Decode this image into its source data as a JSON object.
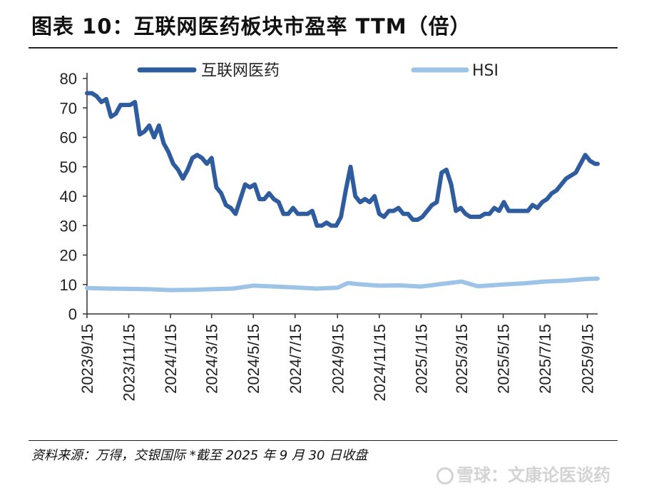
{
  "header": {
    "title": "图表 10：互联网医药板块市盈率 TTM（倍）"
  },
  "footer": {
    "source": "资料来源：万得，交银国际   *截至 2025 年 9 月 30 日收盘",
    "watermark": "雪球：文康论医谈药"
  },
  "chart_data": {
    "type": "line",
    "title": "图表 10：互联网医药板块市盈率 TTM（倍）",
    "xlabel": "",
    "ylabel": "",
    "ylim": [
      0,
      80
    ],
    "yticks": [
      0,
      10,
      20,
      30,
      40,
      50,
      60,
      70,
      80
    ],
    "grid": false,
    "legend_position": "top",
    "categories": [
      "2023/9/15",
      "2023/11/15",
      "2024/1/15",
      "2024/3/15",
      "2024/5/15",
      "2024/7/15",
      "2024/9/15",
      "2024/11/15",
      "2025/1/15",
      "2025/3/15",
      "2025/5/15",
      "2025/7/15",
      "2025/9/15"
    ],
    "x_range": [
      "2023/9/15",
      "2025/9/30"
    ],
    "series": [
      {
        "name": "互联网医药",
        "color": "#2e5c9e",
        "points": [
          [
            "2023/9/15",
            75
          ],
          [
            "2023/9/22",
            75
          ],
          [
            "2023/9/29",
            74
          ],
          [
            "2023/10/6",
            72
          ],
          [
            "2023/10/13",
            73
          ],
          [
            "2023/10/20",
            67
          ],
          [
            "2023/10/27",
            68
          ],
          [
            "2023/11/3",
            71
          ],
          [
            "2023/11/10",
            71
          ],
          [
            "2023/11/17",
            71
          ],
          [
            "2023/11/24",
            72
          ],
          [
            "2023/12/1",
            61
          ],
          [
            "2023/12/8",
            62
          ],
          [
            "2023/12/15",
            64
          ],
          [
            "2023/12/22",
            60
          ],
          [
            "2023/12/29",
            64
          ],
          [
            "2024/1/5",
            58
          ],
          [
            "2024/1/12",
            55
          ],
          [
            "2024/1/19",
            51
          ],
          [
            "2024/1/26",
            49
          ],
          [
            "2024/2/2",
            46
          ],
          [
            "2024/2/9",
            49
          ],
          [
            "2024/2/16",
            53
          ],
          [
            "2024/2/23",
            54
          ],
          [
            "2024/3/1",
            53
          ],
          [
            "2024/3/8",
            51
          ],
          [
            "2024/3/15",
            53
          ],
          [
            "2024/3/22",
            43
          ],
          [
            "2024/3/29",
            41
          ],
          [
            "2024/4/5",
            37
          ],
          [
            "2024/4/12",
            36
          ],
          [
            "2024/4/19",
            34
          ],
          [
            "2024/4/26",
            39
          ],
          [
            "2024/5/3",
            44
          ],
          [
            "2024/5/10",
            43
          ],
          [
            "2024/5/17",
            44
          ],
          [
            "2024/5/24",
            39
          ],
          [
            "2024/5/31",
            39
          ],
          [
            "2024/6/7",
            41
          ],
          [
            "2024/6/14",
            39
          ],
          [
            "2024/6/21",
            38
          ],
          [
            "2024/6/28",
            34
          ],
          [
            "2024/7/5",
            34
          ],
          [
            "2024/7/12",
            36
          ],
          [
            "2024/7/19",
            34
          ],
          [
            "2024/7/26",
            34
          ],
          [
            "2024/8/2",
            34
          ],
          [
            "2024/8/9",
            35
          ],
          [
            "2024/8/16",
            30
          ],
          [
            "2024/8/23",
            30
          ],
          [
            "2024/8/30",
            31
          ],
          [
            "2024/9/6",
            30
          ],
          [
            "2024/9/13",
            30
          ],
          [
            "2024/9/20",
            33
          ],
          [
            "2024/9/27",
            42
          ],
          [
            "2024/10/4",
            50
          ],
          [
            "2024/10/11",
            40
          ],
          [
            "2024/10/18",
            38
          ],
          [
            "2024/10/25",
            39
          ],
          [
            "2024/11/1",
            38
          ],
          [
            "2024/11/8",
            40
          ],
          [
            "2024/11/15",
            34
          ],
          [
            "2024/11/22",
            33
          ],
          [
            "2024/11/29",
            35
          ],
          [
            "2024/12/6",
            35
          ],
          [
            "2024/12/13",
            36
          ],
          [
            "2024/12/20",
            34
          ],
          [
            "2024/12/27",
            34
          ],
          [
            "2025/1/3",
            32
          ],
          [
            "2025/1/10",
            32
          ],
          [
            "2025/1/17",
            33
          ],
          [
            "2025/1/24",
            35
          ],
          [
            "2025/1/31",
            37
          ],
          [
            "2025/2/7",
            38
          ],
          [
            "2025/2/14",
            48
          ],
          [
            "2025/2/21",
            49
          ],
          [
            "2025/2/28",
            44
          ],
          [
            "2025/3/7",
            35
          ],
          [
            "2025/3/14",
            36
          ],
          [
            "2025/3/21",
            34
          ],
          [
            "2025/3/28",
            33
          ],
          [
            "2025/4/4",
            33
          ],
          [
            "2025/4/11",
            33
          ],
          [
            "2025/4/18",
            34
          ],
          [
            "2025/4/25",
            34
          ],
          [
            "2025/5/2",
            36
          ],
          [
            "2025/5/9",
            35
          ],
          [
            "2025/5/16",
            38
          ],
          [
            "2025/5/23",
            35
          ],
          [
            "2025/5/30",
            35
          ],
          [
            "2025/6/6",
            35
          ],
          [
            "2025/6/13",
            35
          ],
          [
            "2025/6/20",
            35
          ],
          [
            "2025/6/27",
            37
          ],
          [
            "2025/7/4",
            36
          ],
          [
            "2025/7/11",
            38
          ],
          [
            "2025/7/18",
            39
          ],
          [
            "2025/7/25",
            41
          ],
          [
            "2025/8/1",
            42
          ],
          [
            "2025/8/8",
            44
          ],
          [
            "2025/8/15",
            46
          ],
          [
            "2025/8/22",
            47
          ],
          [
            "2025/8/29",
            48
          ],
          [
            "2025/9/5",
            51
          ],
          [
            "2025/9/12",
            54
          ],
          [
            "2025/9/19",
            52
          ],
          [
            "2025/9/26",
            51
          ],
          [
            "2025/9/30",
            51
          ]
        ]
      },
      {
        "name": "HSI",
        "color": "#9dc3e6",
        "points": [
          [
            "2023/9/15",
            8.8
          ],
          [
            "2023/10/15",
            8.6
          ],
          [
            "2023/11/15",
            8.5
          ],
          [
            "2023/12/15",
            8.4
          ],
          [
            "2024/1/15",
            8.1
          ],
          [
            "2024/2/15",
            8.2
          ],
          [
            "2024/3/15",
            8.4
          ],
          [
            "2024/4/15",
            8.6
          ],
          [
            "2024/5/15",
            9.6
          ],
          [
            "2024/6/15",
            9.3
          ],
          [
            "2024/7/15",
            9.0
          ],
          [
            "2024/8/15",
            8.6
          ],
          [
            "2024/9/15",
            8.9
          ],
          [
            "2024/9/30",
            10.5
          ],
          [
            "2024/10/15",
            10.1
          ],
          [
            "2024/11/15",
            9.6
          ],
          [
            "2024/12/15",
            9.7
          ],
          [
            "2025/1/15",
            9.3
          ],
          [
            "2025/2/15",
            10.2
          ],
          [
            "2025/3/15",
            11.0
          ],
          [
            "2025/4/8",
            9.4
          ],
          [
            "2025/5/15",
            10.0
          ],
          [
            "2025/6/15",
            10.4
          ],
          [
            "2025/7/15",
            11.0
          ],
          [
            "2025/8/15",
            11.3
          ],
          [
            "2025/9/15",
            11.9
          ],
          [
            "2025/9/30",
            12.0
          ]
        ]
      }
    ]
  }
}
